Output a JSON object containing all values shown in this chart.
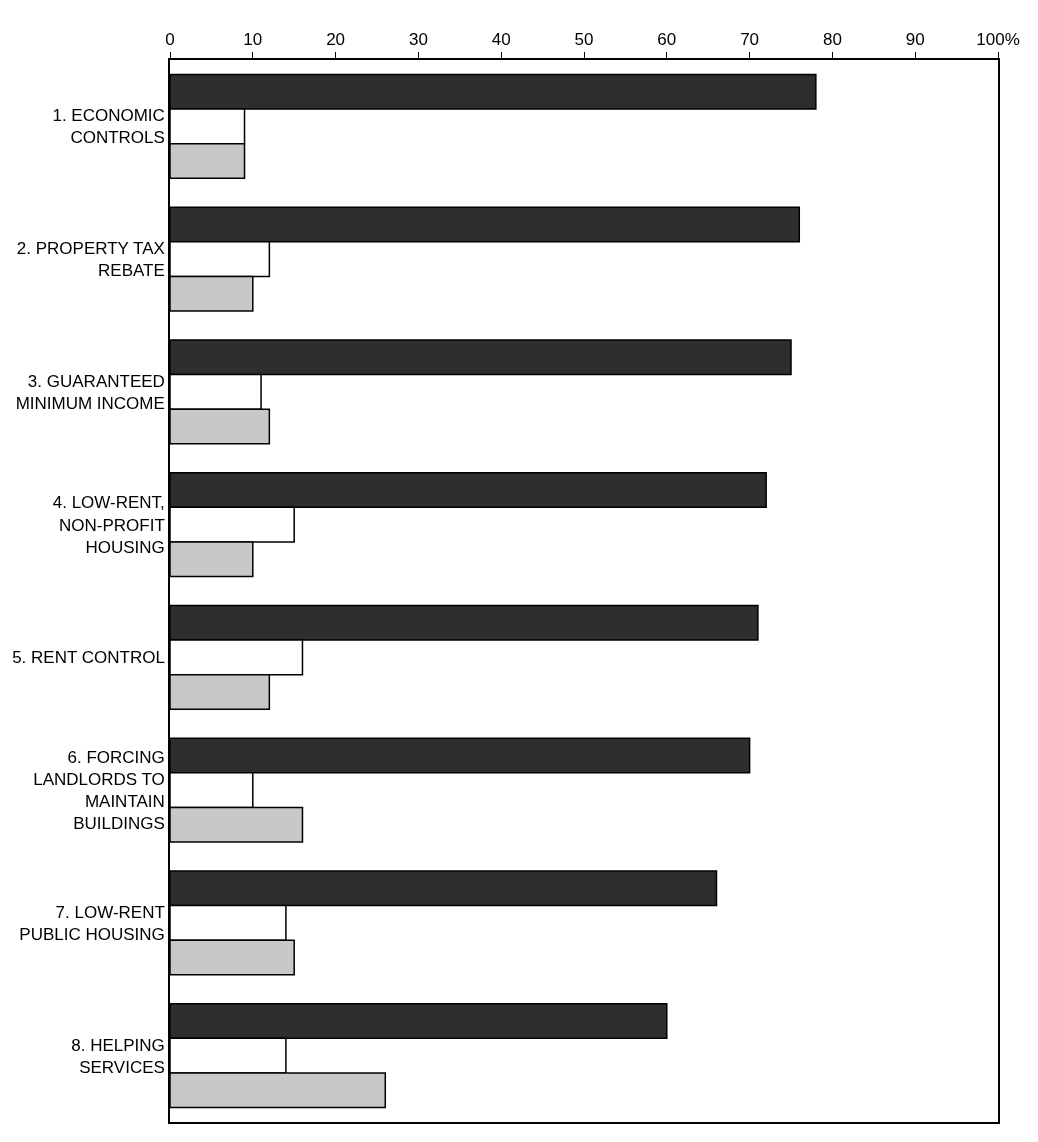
{
  "chart_data": {
    "type": "bar",
    "orientation": "horizontal",
    "categories": [
      "1. ECONOMIC CONTROLS",
      "2. PROPERTY TAX REBATE",
      "3. GUARANTEED MINIMUM INCOME",
      "4. LOW-RENT, NON-PROFIT HOUSING",
      "5. RENT CONTROL",
      "6. FORCING LANDLORDS TO MAINTAIN BUILDINGS",
      "7. LOW-RENT PUBLIC HOUSING",
      "8. HELPING SERVICES"
    ],
    "series": [
      {
        "color": "#2e2e2e",
        "values": [
          78,
          76,
          75,
          72,
          71,
          70,
          66,
          60
        ]
      },
      {
        "color": "#ffffff",
        "values": [
          9,
          12,
          11,
          15,
          16,
          10,
          14,
          14
        ]
      },
      {
        "color": "#c8c8c8",
        "values": [
          9,
          10,
          12,
          10,
          12,
          16,
          15,
          26
        ]
      }
    ],
    "xlim": [
      0,
      100
    ],
    "xticks": [
      0,
      10,
      20,
      30,
      40,
      50,
      60,
      70,
      80,
      90,
      {
        "value": 100,
        "label": "100%"
      }
    ],
    "grid": false
  }
}
